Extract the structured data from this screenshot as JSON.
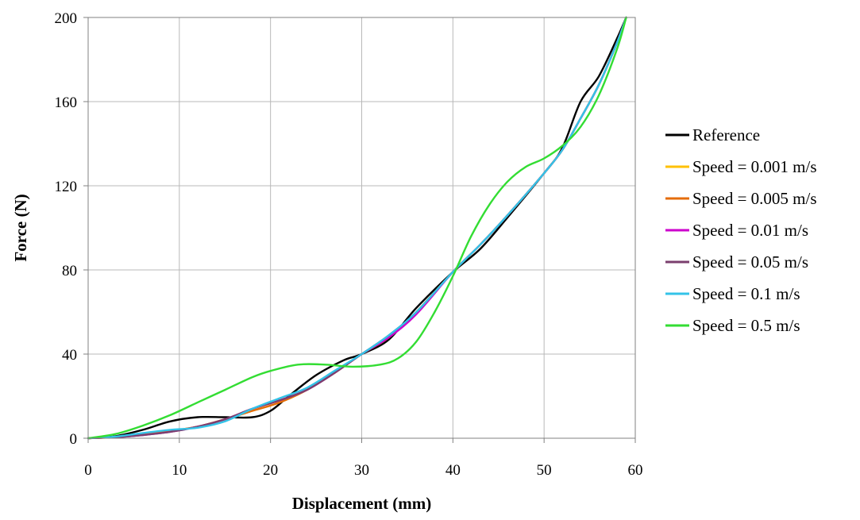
{
  "chart_data": {
    "type": "line",
    "title": "",
    "xlabel": "Displacement (mm)",
    "ylabel": "Force (N)",
    "xlim": [
      0,
      60
    ],
    "ylim": [
      0,
      200
    ],
    "xticks": [
      "0",
      "10",
      "20",
      "30",
      "40",
      "50",
      "60"
    ],
    "yticks": [
      "0",
      "40",
      "80",
      "120",
      "160",
      "200"
    ],
    "grid": true,
    "legend_position": "right",
    "series": [
      {
        "name": "Reference",
        "color": "#000000",
        "x": [
          0,
          3,
          6,
          9,
          12,
          15,
          18,
          20,
          22,
          25,
          28,
          30,
          33,
          36,
          40,
          43,
          46,
          50,
          52,
          54,
          56,
          58,
          59
        ],
        "y": [
          0,
          1,
          4,
          8,
          10,
          10,
          10,
          13,
          20,
          30,
          37,
          40,
          47,
          62,
          79,
          90,
          105,
          126,
          138,
          160,
          172,
          190,
          200
        ]
      },
      {
        "name": "Speed = 0.001 m/s",
        "color": "#FFC000",
        "x": [
          0,
          3,
          6,
          9,
          12,
          15,
          18,
          21,
          24,
          27,
          30,
          33,
          36,
          40,
          43,
          46,
          50,
          52,
          54,
          56,
          58,
          59
        ],
        "y": [
          0,
          0.5,
          2,
          3.5,
          5.5,
          9,
          13,
          17,
          23,
          31,
          40,
          48,
          60,
          79,
          92,
          106,
          126,
          137,
          152,
          168,
          188,
          200
        ]
      },
      {
        "name": "Speed = 0.005 m/s",
        "color": "#E46C0A",
        "x": [
          0,
          3,
          6,
          9,
          12,
          15,
          18,
          21,
          24,
          27,
          30,
          33,
          36,
          40,
          43,
          46,
          50,
          52,
          54,
          56,
          58,
          59
        ],
        "y": [
          0,
          0.5,
          1.8,
          3.5,
          5.5,
          9,
          13,
          17,
          23,
          31,
          40,
          48,
          60,
          79,
          92,
          106,
          126,
          137,
          152,
          168,
          188,
          200
        ]
      },
      {
        "name": "Speed = 0.01 m/s",
        "color": "#CC00CC",
        "x": [
          0,
          3,
          6,
          9,
          12,
          15,
          18,
          21,
          24,
          27,
          30,
          33,
          36,
          40,
          43,
          46,
          50,
          52,
          54,
          56,
          58,
          59
        ],
        "y": [
          0,
          0.5,
          1.5,
          3,
          5.5,
          9,
          14,
          18,
          23,
          31,
          40,
          48,
          59,
          79,
          92,
          106,
          126,
          137,
          152,
          168,
          188,
          200
        ]
      },
      {
        "name": "Speed = 0.05 m/s",
        "color": "#7B3F6E",
        "x": [
          0,
          3,
          6,
          9,
          12,
          15,
          18,
          21,
          24,
          27,
          30,
          33,
          36,
          40,
          43,
          46,
          50,
          52,
          54,
          56,
          58,
          59
        ],
        "y": [
          0,
          0.5,
          1.5,
          3,
          5.5,
          9,
          14,
          18,
          23,
          31,
          40,
          49,
          60,
          79,
          92,
          106,
          126,
          137,
          152,
          168,
          188,
          200
        ]
      },
      {
        "name": "Speed = 0.1 m/s",
        "color": "#33C3E8",
        "x": [
          0,
          3,
          6,
          9,
          12,
          15,
          18,
          21,
          24,
          27,
          30,
          33,
          36,
          40,
          43,
          46,
          50,
          52,
          54,
          56,
          58,
          59
        ],
        "y": [
          0,
          0.8,
          2.5,
          4,
          5,
          8,
          14,
          19,
          24,
          32,
          40,
          49,
          60,
          79,
          92,
          106,
          126,
          137,
          152,
          168,
          188,
          200
        ]
      },
      {
        "name": "Speed = 0.5 m/s",
        "color": "#33DD33",
        "x": [
          0,
          3,
          6,
          9,
          12,
          15,
          18,
          20,
          23,
          26,
          29,
          32,
          34,
          36,
          38,
          40,
          42,
          44,
          46,
          48,
          50,
          52,
          54,
          56,
          58,
          59
        ],
        "y": [
          0,
          2,
          6,
          11,
          17,
          23,
          29,
          32,
          35,
          35,
          34,
          35,
          38,
          46,
          60,
          77,
          96,
          111,
          122,
          129,
          133,
          139,
          148,
          163,
          185,
          200
        ]
      }
    ]
  }
}
